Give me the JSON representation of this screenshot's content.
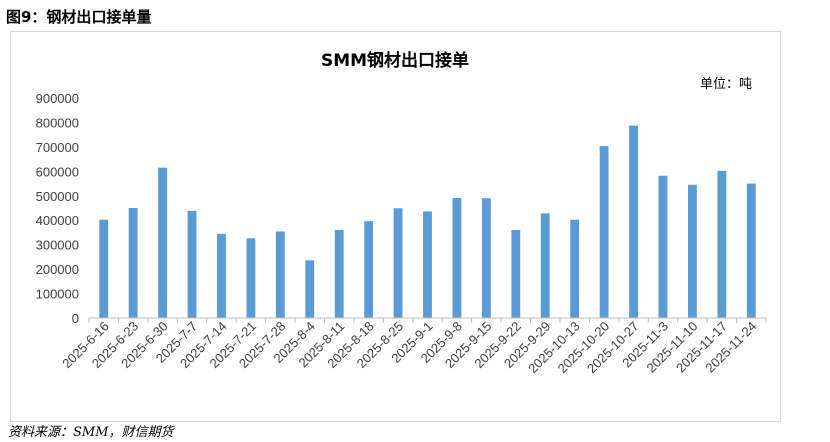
{
  "figure_title": "图9：钢材出口接单量",
  "source": "资料来源：SMM，财信期货",
  "chart_data": {
    "type": "bar",
    "title": "SMM钢材出口接单",
    "unit": "单位：吨",
    "bar_color": "#5b9bd5",
    "ylim": [
      0,
      900000
    ],
    "yticks": [
      "0",
      "100000",
      "200000",
      "300000",
      "400000",
      "500000",
      "600000",
      "700000",
      "800000",
      "900000"
    ],
    "grid": false,
    "categories": [
      "2025-6-16",
      "2025-6-23",
      "2025-6-30",
      "2025-7-7",
      "2025-7-14",
      "2025-7-21",
      "2025-7-28",
      "2025-8-4",
      "2025-8-11",
      "2025-8-18",
      "2025-8-25",
      "2025-9-1",
      "2025-9-8",
      "2025-9-15",
      "2025-9-22",
      "2025-9-29",
      "2025-10-13",
      "2025-10-20",
      "2025-10-27",
      "2025-11-3",
      "2025-11-10",
      "2025-11-17",
      "2025-11-24"
    ],
    "values": [
      402000,
      450000,
      615000,
      438000,
      344000,
      326000,
      354000,
      236000,
      360000,
      396000,
      449000,
      436000,
      491000,
      490000,
      360000,
      428000,
      402000,
      703000,
      787000,
      582000,
      545000,
      602000,
      550000
    ]
  }
}
